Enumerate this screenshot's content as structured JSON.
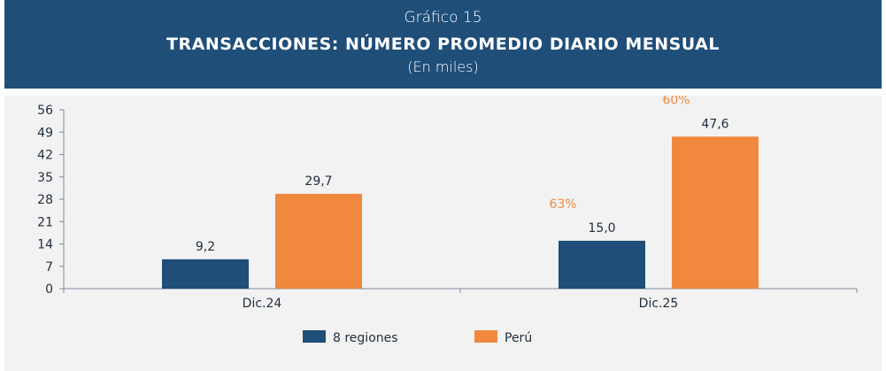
{
  "header": {
    "subtitle": "Gráfico 15",
    "title": "TRANSACCIONES: NÚMERO PROMEDIO DIARIO MENSUAL",
    "unit": "(En miles)",
    "background": "#1f4e79"
  },
  "chart_data": {
    "type": "bar",
    "categories": [
      "Dic.24",
      "Dic.25"
    ],
    "series": [
      {
        "name": "8 regiones",
        "values": [
          9.2,
          15.0
        ],
        "labels": [
          "9,2",
          "15,0"
        ],
        "color": "#1f4e79"
      },
      {
        "name": "Perú",
        "values": [
          29.7,
          47.6
        ],
        "labels": [
          "29,7",
          "47,6"
        ],
        "color": "#f0883e"
      }
    ],
    "growth_labels": [
      {
        "series": "8 regiones",
        "category": "Dic.25",
        "text": "63%"
      },
      {
        "series": "Perú",
        "category": "Dic.25",
        "text": "60%"
      }
    ],
    "ylim": [
      0,
      56
    ],
    "yticks": [
      0,
      7,
      14,
      21,
      28,
      35,
      42,
      49,
      56
    ],
    "grid": false,
    "legend": "bottom-center",
    "background": "#f2f2f2"
  }
}
